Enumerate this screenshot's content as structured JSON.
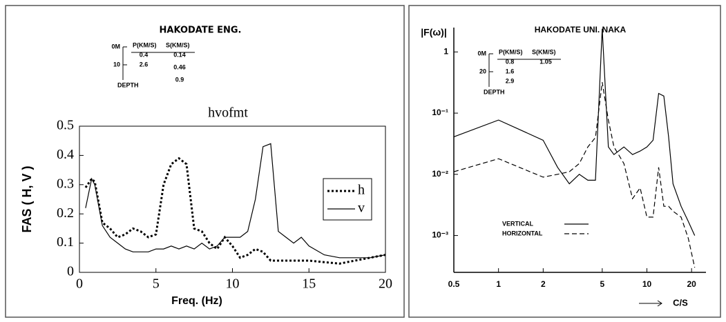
{
  "chart_data": [
    {
      "type": "line",
      "subtitle": "HAKODATE ENG.",
      "title": "hvofmt",
      "xlabel": "Freq. (Hz)",
      "ylabel": "FAS ( H, V )",
      "inset": {
        "depth_labels": [
          "0M",
          "10"
        ],
        "depth_title": "DEPTH",
        "headers": [
          "P(KM/S)",
          "S(KM/S)"
        ],
        "p_values": [
          "0.4",
          "2.6"
        ],
        "s_values": [
          "0.14",
          "0.46",
          "0.9"
        ]
      },
      "x": [
        0.4,
        0.8,
        1,
        1.5,
        2,
        2.5,
        3,
        3.5,
        4,
        4.5,
        5,
        5.5,
        6,
        6.5,
        7,
        7.5,
        8,
        8.5,
        9,
        9.5,
        10,
        10.5,
        11,
        11.5,
        12,
        12.5,
        13,
        13.5,
        14,
        14.5,
        15,
        16,
        17,
        18,
        19,
        20
      ],
      "series": [
        {
          "name": "h",
          "color": "#000000",
          "style": "dotted",
          "values": [
            0.29,
            0.32,
            0.31,
            0.17,
            0.15,
            0.12,
            0.13,
            0.15,
            0.14,
            0.12,
            0.13,
            0.3,
            0.37,
            0.39,
            0.37,
            0.15,
            0.14,
            0.1,
            0.08,
            0.12,
            0.09,
            0.05,
            0.06,
            0.08,
            0.07,
            0.04,
            0.04,
            0.04,
            0.04,
            0.04,
            0.04,
            0.035,
            0.03,
            0.04,
            0.05,
            0.06
          ]
        },
        {
          "name": "v",
          "color": "#000000",
          "style": "solid",
          "values": [
            0.22,
            0.32,
            0.3,
            0.16,
            0.12,
            0.1,
            0.08,
            0.07,
            0.07,
            0.07,
            0.08,
            0.08,
            0.09,
            0.08,
            0.09,
            0.08,
            0.1,
            0.08,
            0.09,
            0.12,
            0.12,
            0.12,
            0.14,
            0.25,
            0.43,
            0.44,
            0.14,
            0.12,
            0.1,
            0.12,
            0.09,
            0.06,
            0.05,
            0.05,
            0.05,
            0.06
          ]
        }
      ],
      "xlim": [
        0,
        20
      ],
      "xticks": [
        0,
        5,
        10,
        15,
        20
      ],
      "ylim": [
        0,
        0.5
      ],
      "yticks": [
        0,
        0.1,
        0.2,
        0.3,
        0.4,
        0.5
      ],
      "grid": false,
      "legend": "center right"
    },
    {
      "type": "line",
      "title": "HAKODATE UNI. NAKA",
      "xlabel": "C/S",
      "ylabel": "|F(ω)|",
      "inset": {
        "depth_labels": [
          "0M",
          "20"
        ],
        "depth_title": "DEPTH",
        "headers": [
          "P(KM/S)",
          "S(KM/S)"
        ],
        "p_values": [
          "0.8",
          "1.6",
          "2.9"
        ],
        "s_values": [
          "1.05"
        ]
      },
      "x": [
        0.5,
        1,
        2,
        2.5,
        3,
        3.5,
        4,
        4.5,
        5,
        5.5,
        6,
        7,
        8,
        9,
        10,
        11,
        12,
        13,
        14,
        15,
        17,
        19,
        21
      ],
      "series": [
        {
          "name": "VERTICAL",
          "color": "#000000",
          "style": "solid",
          "values": [
            0.041,
            0.077,
            0.036,
            0.013,
            0.007,
            0.01,
            0.008,
            0.008,
            2.4,
            0.028,
            0.021,
            0.028,
            0.021,
            0.024,
            0.028,
            0.036,
            0.21,
            0.19,
            0.041,
            0.007,
            0.003,
            0.0017,
            0.001
          ]
        },
        {
          "name": "HORIZONTAL",
          "color": "#000000",
          "style": "dashed",
          "values": [
            0.011,
            0.018,
            0.009,
            0.01,
            0.011,
            0.015,
            0.028,
            0.04,
            0.32,
            0.077,
            0.028,
            0.015,
            0.004,
            0.006,
            0.002,
            0.002,
            0.013,
            0.003,
            0.003,
            0.0025,
            0.002,
            0.0009,
            0.0003
          ]
        }
      ],
      "xlog": true,
      "ylog": true,
      "xlim": [
        0.5,
        25
      ],
      "xticks": [
        0.5,
        1,
        2,
        5,
        10,
        20
      ],
      "ylim": [
        0.00025,
        2.5
      ],
      "yticks": [
        {
          "value": 1,
          "label": "1"
        },
        {
          "value": 0.1,
          "label": "10⁻¹"
        },
        {
          "value": 0.01,
          "label": "10⁻²"
        },
        {
          "value": 0.001,
          "label": "10⁻³"
        }
      ],
      "grid": false,
      "legend": "lower center"
    }
  ]
}
